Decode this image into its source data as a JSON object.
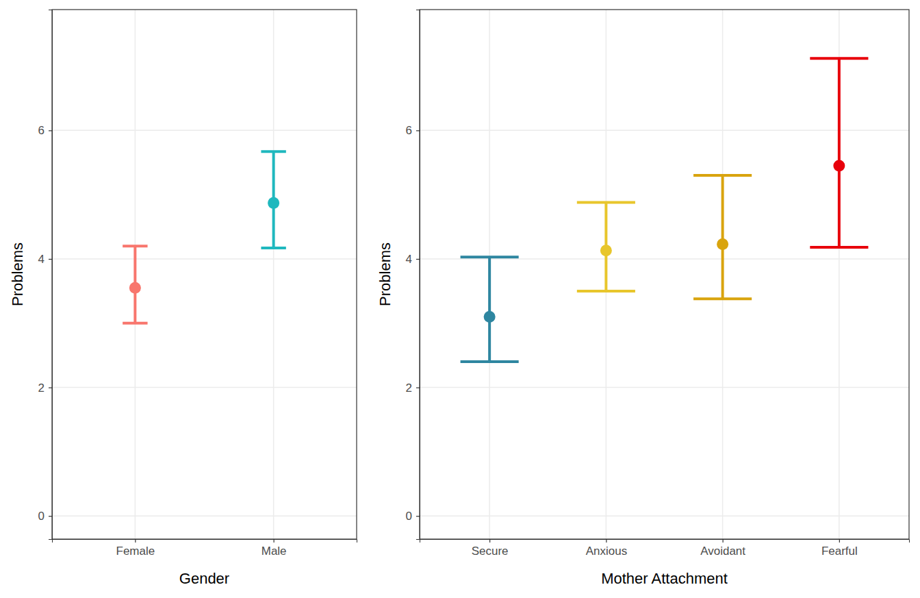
{
  "chart_data": [
    {
      "type": "point",
      "x_label": "Gender",
      "y_label": "Problems",
      "categories": [
        "Female",
        "Male"
      ],
      "values": [
        3.55,
        4.87
      ],
      "lower": [
        3.0,
        4.17
      ],
      "upper": [
        4.2,
        5.67
      ],
      "colors": [
        "#f8766d",
        "#1fb8be"
      ],
      "ylim": [
        -0.36,
        7.88
      ],
      "yticks": [
        0,
        2,
        4,
        6
      ],
      "grid": true
    },
    {
      "type": "point",
      "x_label": "Mother Attachment",
      "y_label": "Problems",
      "categories": [
        "Secure",
        "Anxious",
        "Avoidant",
        "Fearful"
      ],
      "values": [
        3.1,
        4.13,
        4.23,
        5.45
      ],
      "lower": [
        2.4,
        3.5,
        3.38,
        4.18
      ],
      "upper": [
        4.03,
        4.88,
        5.3,
        7.12
      ],
      "colors": [
        "#2e86a0",
        "#e8c62c",
        "#d9a40e",
        "#e8000b"
      ],
      "ylim": [
        -0.36,
        7.88
      ],
      "yticks": [
        0,
        2,
        4,
        6
      ],
      "grid": true
    }
  ]
}
